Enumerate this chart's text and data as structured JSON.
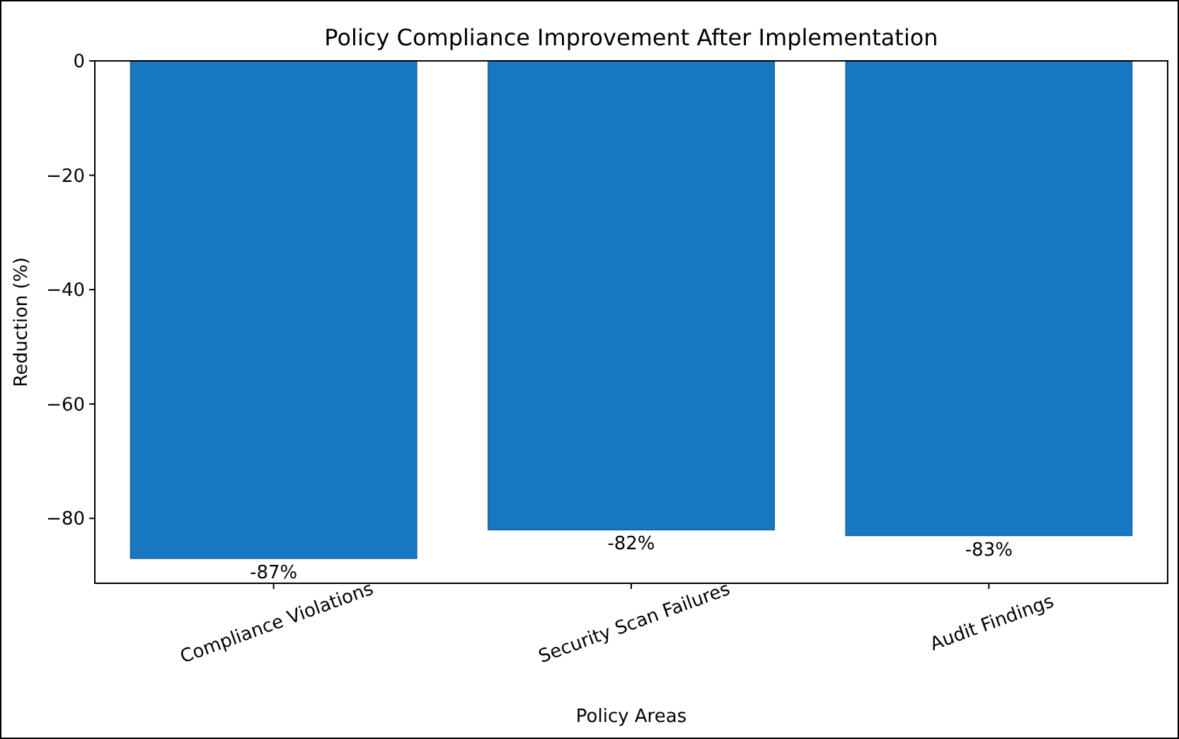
{
  "chart_data": {
    "type": "bar",
    "title": "Policy Compliance Improvement After Implementation",
    "xlabel": "Policy Areas",
    "ylabel": "Reduction (%)",
    "categories": [
      "Compliance Violations",
      "Security Scan Failures",
      "Audit Findings"
    ],
    "values": [
      -87,
      -82,
      -83
    ],
    "color": "#1878c2",
    "value_labels": [
      "-87%",
      "-82%",
      "-83%"
    ],
    "ylim": [
      -91.35,
      0
    ],
    "yticks": [
      {
        "value": -80,
        "label": "−80"
      },
      {
        "value": -60,
        "label": "−60"
      },
      {
        "value": -40,
        "label": "−40"
      },
      {
        "value": -20,
        "label": "−20"
      },
      0
    ],
    "grid": false
  }
}
